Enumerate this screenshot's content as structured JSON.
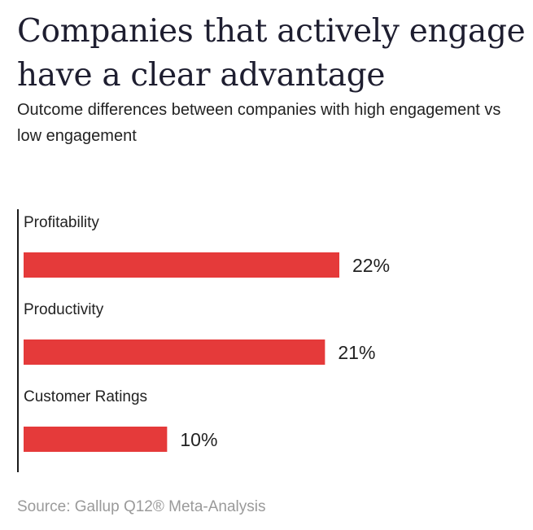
{
  "header": {
    "title": "Companies that actively engage have a clear advantage",
    "subtitle": "Outcome differences between companies with high engagement vs low engagement"
  },
  "chart_data": {
    "type": "bar",
    "orientation": "horizontal",
    "categories": [
      "Profitability",
      "Productivity",
      "Customer Ratings"
    ],
    "values": [
      22,
      21,
      10
    ],
    "value_labels": [
      "22%",
      "21%",
      "10%"
    ],
    "unit": "%",
    "xlim": [
      0,
      22
    ],
    "bar_color": "#e53a3a",
    "axis_color": "#1a1a1a",
    "title": "Companies that actively engage have a clear advantage",
    "xlabel": "",
    "ylabel": "",
    "grid": false,
    "legend": "none"
  },
  "footer": {
    "source": "Source: Gallup Q12® Meta-Analysis"
  }
}
